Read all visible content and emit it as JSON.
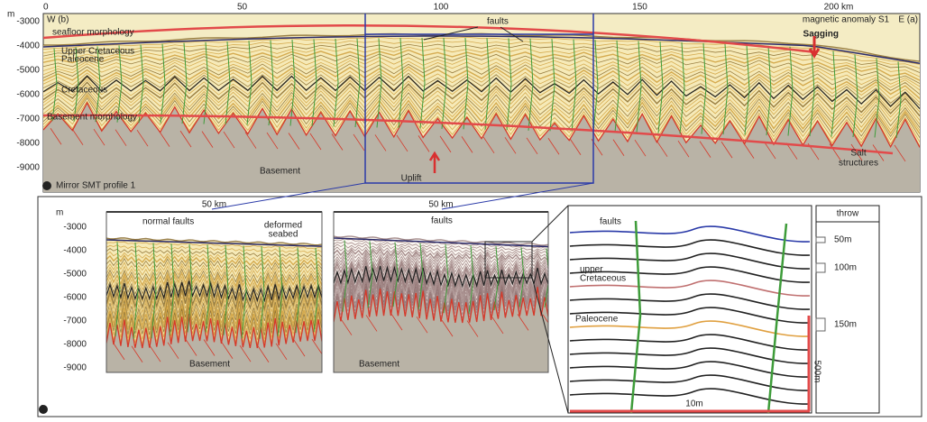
{
  "panel_a": {
    "badge": "a",
    "title": "Mirror SMT profile 1",
    "depth_unit": "m",
    "x_ticks": [
      "0",
      "50",
      "100",
      "150",
      "200 km"
    ],
    "y_ticks": [
      -3000,
      -4000,
      -5000,
      -6000,
      -7000,
      -8000,
      -9000
    ],
    "west": "W (b)",
    "east": "E (a)",
    "labels": {
      "seafloor": "seafloor morphology",
      "faults": "faults",
      "anomaly": "magnetic anomaly S1",
      "sagging": "Sagging",
      "upper": "Upper Cretaceous",
      "paleocene": "Paleocene",
      "cretaceous": "Cretaceous",
      "basement_morphology": "Basement morphology",
      "basement": "Basement",
      "uplift": "Uplift",
      "salt": [
        "Salt",
        "structures"
      ]
    }
  },
  "panel_b": {
    "badge": "b",
    "depth_unit": "m",
    "y_ticks": [
      -3000,
      -4000,
      -5000,
      -6000,
      -7000,
      -8000,
      -9000
    ],
    "left": {
      "scale": "50 km",
      "normal_faults": "normal faults",
      "deformed": [
        "deformed",
        "seabed"
      ],
      "basement": "Basement"
    },
    "middle": {
      "scale": "50 km",
      "faults": "faults",
      "basement": "Basement"
    },
    "detail": {
      "faults": "faults",
      "upper": [
        "upper",
        "Cretaceous"
      ],
      "paleocene": "Paleocene",
      "width": "10m",
      "height": "500m"
    },
    "throw": {
      "title": "throw",
      "values": [
        "50m",
        "100m",
        "150m"
      ]
    }
  }
}
